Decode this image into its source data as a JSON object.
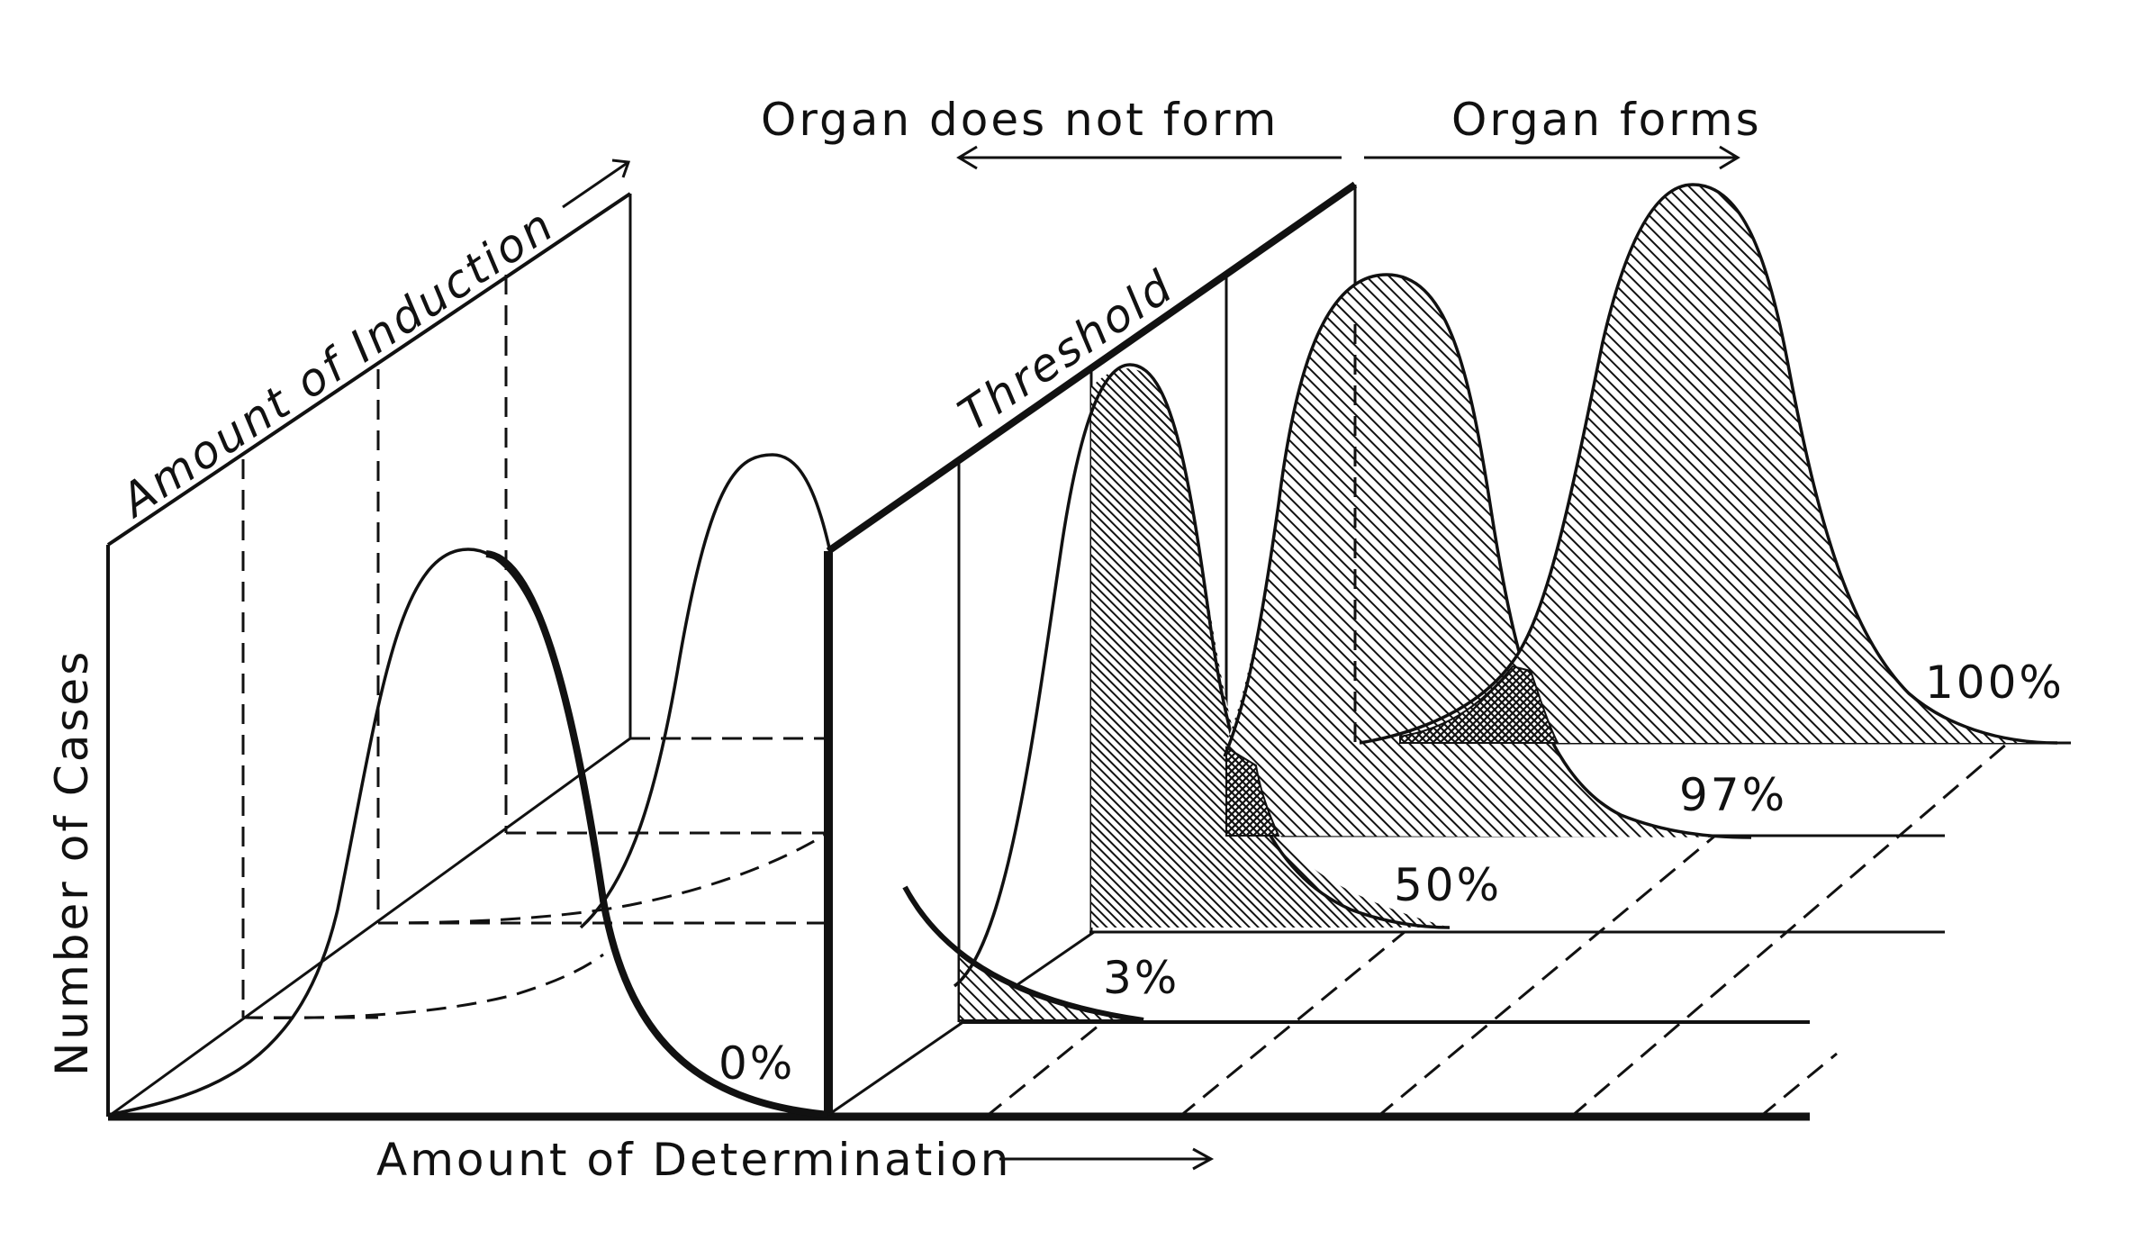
{
  "labels": {
    "organ_does_not_form": "Organ does not form",
    "organ_forms": "Organ forms",
    "amount_of_induction": "Amount of Induction",
    "threshold": "Threshold",
    "number_of_cases": "Number of Cases",
    "amount_of_determination": "Amount of Determination"
  },
  "curves": [
    {
      "percent_label": "0%"
    },
    {
      "percent_label": "3%"
    },
    {
      "percent_label": "50%"
    },
    {
      "percent_label": "97%"
    },
    {
      "percent_label": "100%"
    }
  ],
  "colors": {
    "ink": "#111111",
    "paper": "#ffffff"
  }
}
